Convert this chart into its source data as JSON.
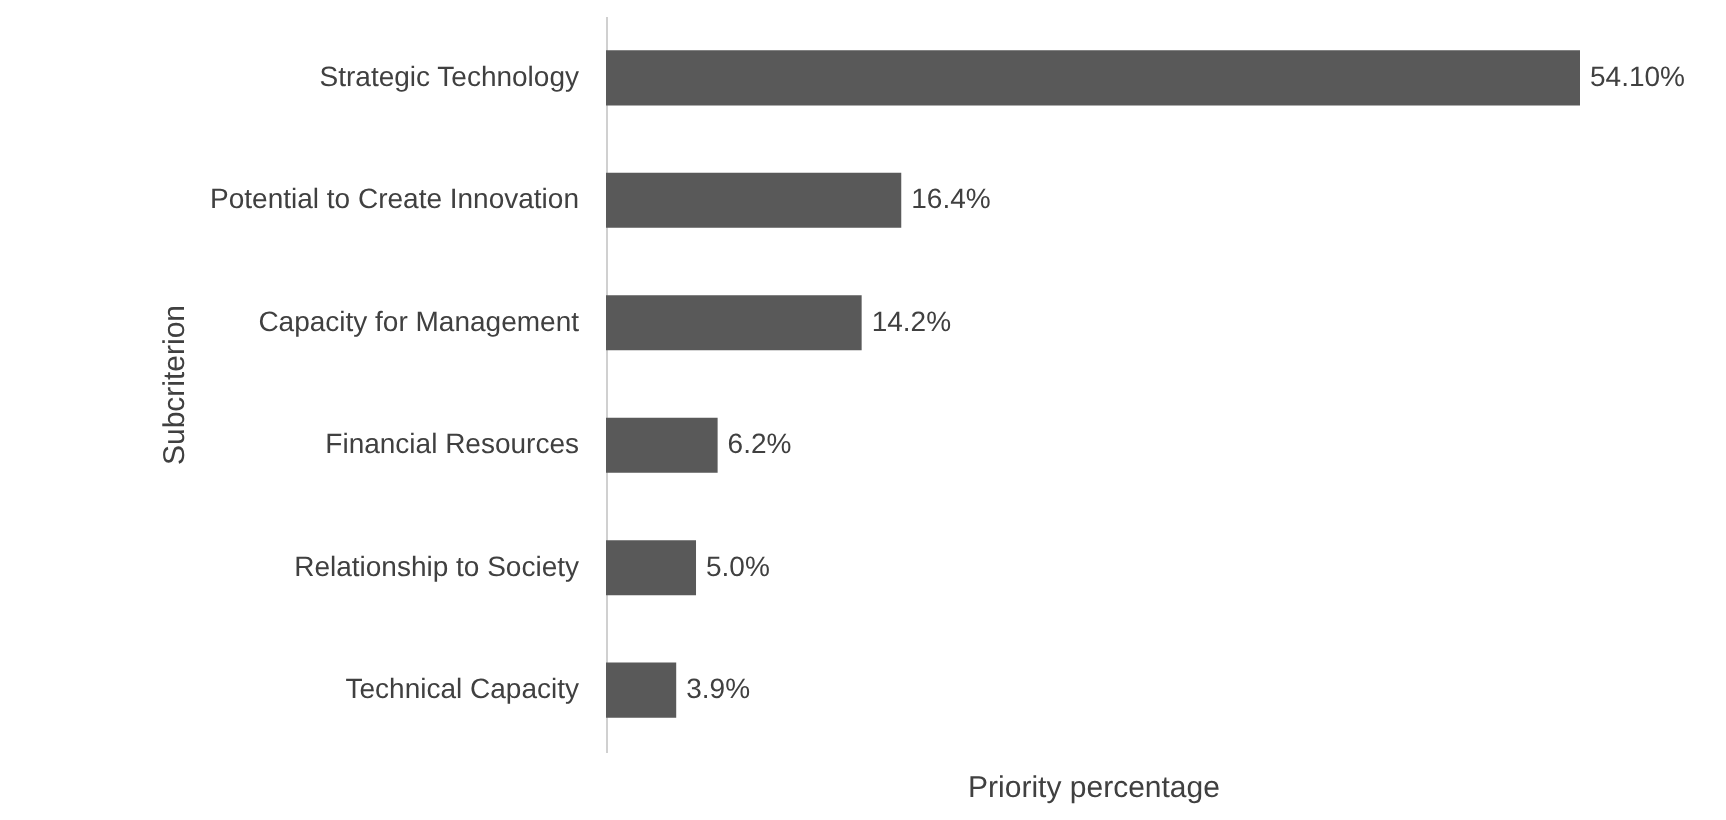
{
  "chart_data": {
    "type": "bar",
    "orientation": "horizontal",
    "xlabel": "Priority percentage",
    "ylabel": "Subcriterion",
    "categories": [
      "Strategic Technology",
      "Potential to Create Innovation",
      "Capacity for Management",
      "Financial Resources",
      "Relationship to Society",
      "Technical Capacity"
    ],
    "values": [
      54.1,
      16.4,
      14.2,
      6.2,
      5.0,
      3.9
    ],
    "value_labels": [
      "54.10%",
      "16.4%",
      "14.2%",
      "6.2%",
      "5.0%",
      "3.9%"
    ],
    "color": "#595959"
  }
}
